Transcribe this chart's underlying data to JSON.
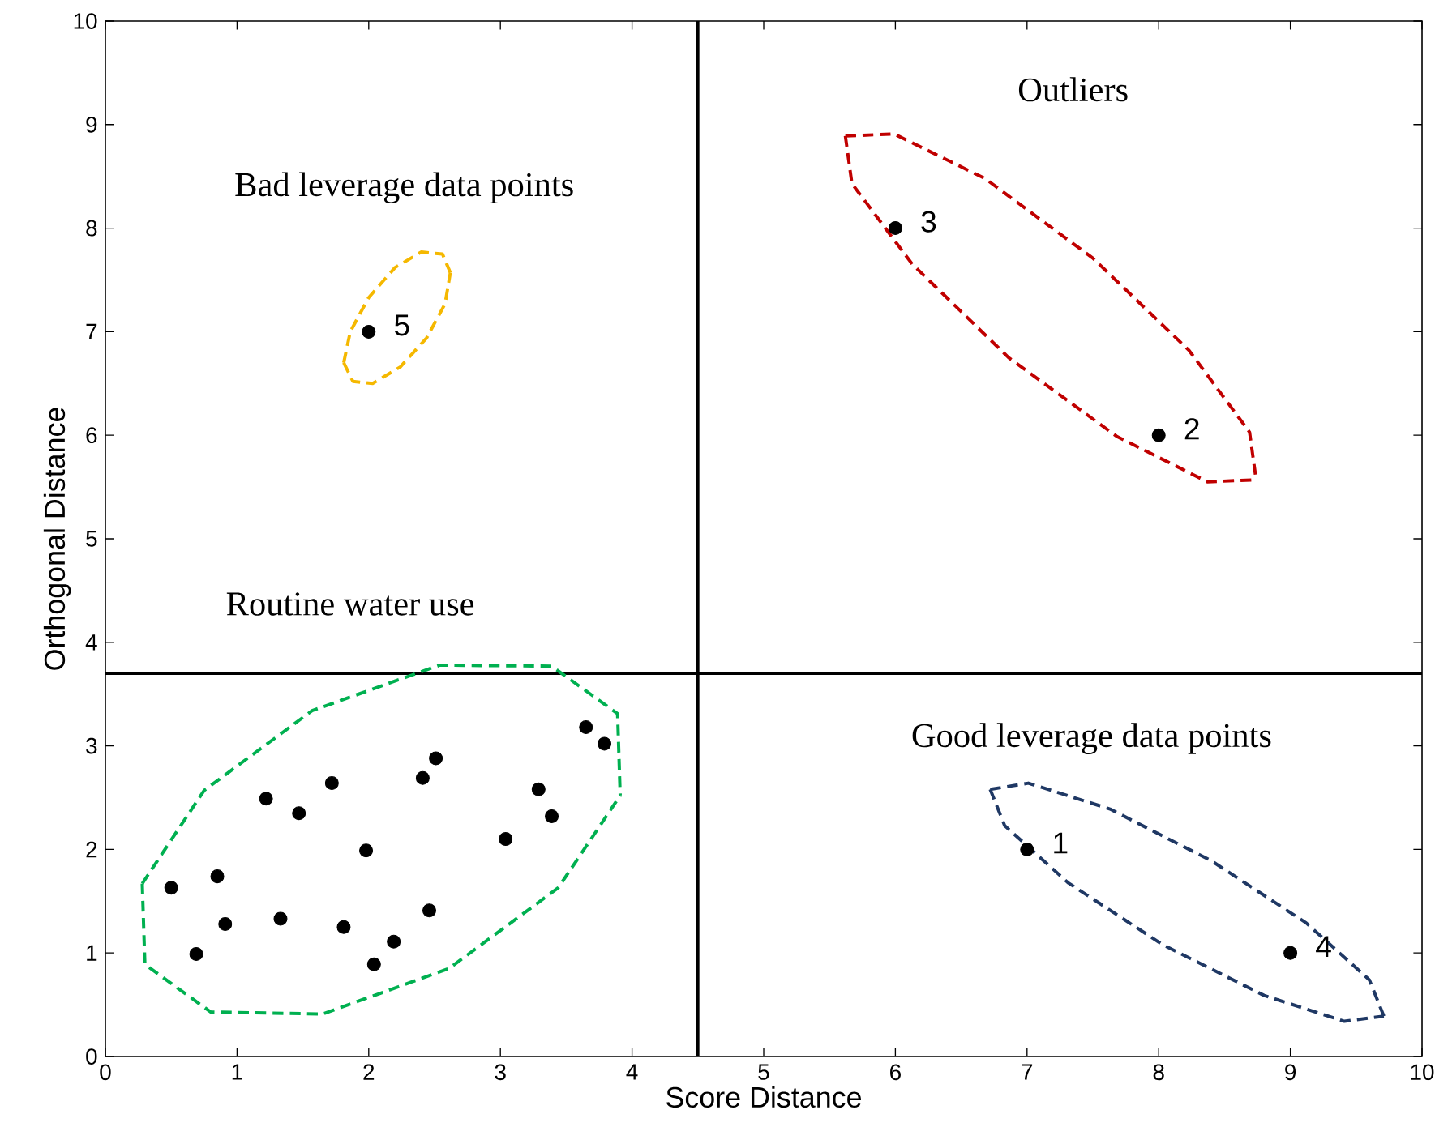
{
  "chart_data": {
    "type": "scatter",
    "xlabel": "Score Distance",
    "ylabel": "Orthogonal Distance",
    "series": [
      {
        "color": "#000000",
        "marker": "circle",
        "x": [
          0.5,
          0.69,
          0.85,
          0.91,
          1.22,
          1.33,
          1.47,
          1.72,
          1.81,
          1.98,
          2.04,
          2.19,
          2.41,
          2.46,
          2.51,
          3.04,
          3.29,
          3.39,
          3.65,
          3.79,
          7,
          8,
          6,
          9,
          2
        ],
        "values": [
          1.63,
          0.99,
          1.74,
          1.28,
          2.49,
          1.33,
          2.35,
          2.64,
          1.25,
          1.99,
          0.89,
          1.11,
          2.69,
          1.41,
          2.88,
          2.1,
          2.58,
          2.32,
          3.18,
          3.02,
          2,
          6,
          8,
          1,
          7
        ]
      },
      {
        "type": "line",
        "line_style": "dashed",
        "marker": "none",
        "color": "#00b050",
        "x": [
          0.28,
          0.75,
          1.57,
          2.54,
          3.39,
          3.89,
          3.91
        ],
        "values": [
          1.67,
          2.57,
          3.34,
          3.78,
          3.77,
          3.31,
          2.52
        ]
      },
      {
        "type": "line",
        "line_style": "dashed",
        "marker": "none",
        "color": "#00b050",
        "x": [
          0.28,
          0.3,
          0.8,
          1.65,
          2.61,
          3.44,
          3.91
        ],
        "values": [
          1.67,
          0.89,
          0.43,
          0.41,
          0.85,
          1.63,
          2.52
        ]
      },
      {
        "type": "line",
        "line_style": "dashed",
        "marker": "none",
        "color": "#f5b800",
        "x": [
          1.81,
          1.86,
          2.0,
          2.2,
          2.4,
          2.56,
          2.62
        ],
        "values": [
          6.7,
          7.0,
          7.33,
          7.62,
          7.77,
          7.75,
          7.57
        ]
      },
      {
        "type": "line",
        "line_style": "dashed",
        "marker": "none",
        "color": "#f5b800",
        "x": [
          1.81,
          1.88,
          2.03,
          2.24,
          2.44,
          2.58,
          2.62
        ],
        "values": [
          6.7,
          6.52,
          6.5,
          6.66,
          6.94,
          7.27,
          7.57
        ]
      },
      {
        "type": "line",
        "line_style": "dashed",
        "marker": "none",
        "color": "#c00000",
        "x": [
          5.62,
          5.99,
          6.68,
          7.5,
          8.23,
          8.69,
          8.74
        ],
        "values": [
          8.89,
          8.91,
          8.48,
          7.71,
          6.82,
          6.03,
          5.57
        ]
      },
      {
        "type": "line",
        "line_style": "dashed",
        "marker": "none",
        "color": "#c00000",
        "x": [
          5.62,
          5.67,
          6.13,
          6.86,
          7.68,
          8.37,
          8.74
        ],
        "values": [
          8.89,
          8.43,
          7.65,
          6.75,
          5.99,
          5.55,
          5.57
        ]
      },
      {
        "type": "line",
        "line_style": "dashed",
        "marker": "none",
        "color": "#1f3864",
        "x": [
          6.72,
          7.01,
          7.63,
          8.4,
          9.12,
          9.6,
          9.71
        ],
        "values": [
          2.58,
          2.64,
          2.39,
          1.89,
          1.29,
          0.74,
          0.39
        ]
      },
      {
        "type": "line",
        "line_style": "dashed",
        "marker": "none",
        "color": "#1f3864",
        "x": [
          6.72,
          6.83,
          7.31,
          8.03,
          8.8,
          9.41,
          9.71
        ],
        "values": [
          2.58,
          2.23,
          1.68,
          1.08,
          0.59,
          0.34,
          0.39
        ]
      }
    ],
    "xlim": [
      0,
      10
    ],
    "ylim": [
      0,
      10
    ],
    "xticks": [
      0,
      1,
      2,
      3,
      4,
      5,
      6,
      7,
      8,
      9,
      10
    ],
    "yticks": [
      0,
      1,
      2,
      3,
      4,
      5,
      6,
      7,
      8,
      9,
      10
    ],
    "ref_lines": [
      {
        "axis": "x",
        "value": 4.5,
        "color": "#000000"
      },
      {
        "axis": "y",
        "value": 3.7,
        "color": "#000000"
      }
    ],
    "annotations": [
      "Outliers",
      "Bad leverage data points",
      "Routine water use",
      "Good leverage data points",
      {
        "text": "1",
        "x": 7,
        "y": 2
      },
      {
        "text": "2",
        "x": 8,
        "y": 6
      },
      {
        "text": "3",
        "x": 6,
        "y": 8
      },
      {
        "text": "4",
        "x": 9,
        "y": 1
      },
      {
        "text": "5",
        "x": 2,
        "y": 7
      }
    ]
  }
}
